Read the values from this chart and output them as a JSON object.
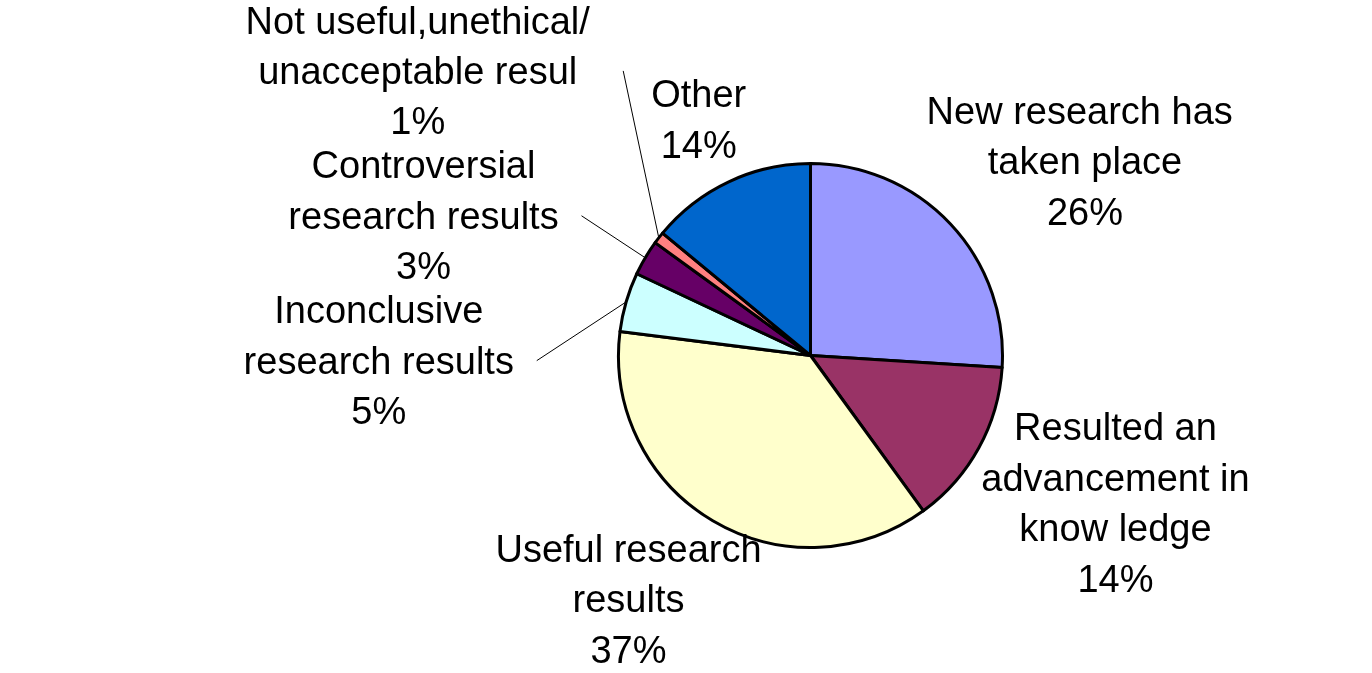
{
  "chart_data": {
    "type": "pie",
    "categories": [
      "New  research has\ntaken place",
      "Resulted an\nadvancement in\nknow ledge",
      "Useful research\nresults",
      "Inconclusive\nresearch results",
      "Controversial\nresearch results",
      "Not useful,unethical/\nunacceptable resul",
      "Other"
    ],
    "values": [
      26,
      14,
      37,
      5,
      3,
      1,
      14
    ],
    "value_labels": [
      "26%",
      "14%",
      "37%",
      "5%",
      "3%",
      "1%",
      "14%"
    ],
    "colors": [
      "#9999ff",
      "#993366",
      "#ffffcc",
      "#ccffff",
      "#660066",
      "#ff8080",
      "#0066cc"
    ]
  }
}
